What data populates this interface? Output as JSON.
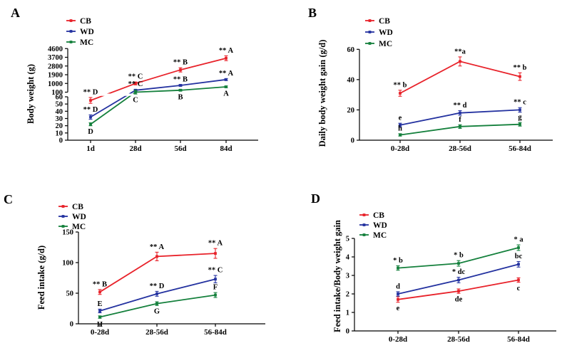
{
  "figure_title": "Growth performance figure (panels A-D)",
  "colors": {
    "CB": "#e8222a",
    "WD": "#2432a0",
    "MC": "#14803c",
    "axis": "#000000"
  },
  "chart_data": [
    {
      "id": "A",
      "type": "line",
      "panel_label": "A",
      "ylabel": "Body weight (g)",
      "xlabel": "",
      "categories": [
        "1d",
        "28d",
        "56d",
        "84d"
      ],
      "legend": [
        "CB",
        "WD",
        "MC"
      ],
      "legend_position": "top-left",
      "grid": false,
      "y_axis": {
        "type": "segmented",
        "lower": {
          "range": [
            0,
            60
          ],
          "ticks": [
            0,
            10,
            20,
            30,
            40,
            50,
            60
          ]
        },
        "upper": {
          "range": [
            100,
            4600
          ],
          "ticks": [
            100,
            1000,
            1900,
            2800,
            3700,
            4600
          ]
        }
      },
      "series": [
        {
          "name": "CB",
          "color": "#e8222a",
          "values": [
            55,
            1000,
            2400,
            3600
          ],
          "errors": [
            4,
            150,
            220,
            250
          ],
          "annotations": [
            {
              "text": "** D",
              "pos": "above"
            },
            {
              "text": "** C",
              "pos": "above"
            },
            {
              "text": "** B",
              "pos": "above"
            },
            {
              "text": "** A",
              "pos": "above"
            }
          ]
        },
        {
          "name": "WD",
          "color": "#2432a0",
          "values": [
            32,
            300,
            800,
            1400
          ],
          "errors": [
            3,
            60,
            80,
            100
          ],
          "annotations": [
            {
              "text": "** D",
              "pos": "above"
            },
            {
              "text": "** C",
              "pos": "above"
            },
            {
              "text": "** B",
              "pos": "above"
            },
            {
              "text": "** A",
              "pos": "above"
            }
          ]
        },
        {
          "name": "MC",
          "color": "#14803c",
          "values": [
            22,
            100,
            300,
            650
          ],
          "errors": [
            2,
            30,
            40,
            50
          ],
          "annotations": [
            {
              "text": "D",
              "pos": "below"
            },
            {
              "text": "C",
              "pos": "below"
            },
            {
              "text": "B",
              "pos": "below"
            },
            {
              "text": "A",
              "pos": "below"
            }
          ]
        }
      ]
    },
    {
      "id": "B",
      "type": "line",
      "panel_label": "B",
      "ylabel": "Daily body weight gain (g/d)",
      "xlabel": "",
      "categories": [
        "0-28d",
        "28-56d",
        "56-84d"
      ],
      "legend": [
        "CB",
        "WD",
        "MC"
      ],
      "legend_position": "top-left",
      "grid": false,
      "y_axis": {
        "type": "linear",
        "range": [
          0,
          60
        ],
        "ticks": [
          0,
          20,
          40,
          60
        ]
      },
      "series": [
        {
          "name": "CB",
          "color": "#e8222a",
          "values": [
            31,
            52,
            42
          ],
          "errors": [
            2,
            3,
            2.5
          ],
          "annotations": [
            {
              "text": "** b",
              "pos": "above"
            },
            {
              "text": "**a",
              "pos": "above"
            },
            {
              "text": "** b",
              "pos": "above"
            }
          ]
        },
        {
          "name": "WD",
          "color": "#2432a0",
          "values": [
            10,
            18,
            20
          ],
          "errors": [
            1.2,
            1.5,
            1.5
          ],
          "annotations": [
            {
              "text": "e",
              "pos": "above"
            },
            {
              "text": "** d",
              "pos": "above"
            },
            {
              "text": "** c",
              "pos": "above"
            }
          ]
        },
        {
          "name": "MC",
          "color": "#14803c",
          "values": [
            3.5,
            9,
            10.5
          ],
          "errors": [
            0.8,
            1.2,
            1.2
          ],
          "annotations": [
            {
              "text": "h",
              "pos": "above"
            },
            {
              "text": "f",
              "pos": "above"
            },
            {
              "text": "g",
              "pos": "above"
            }
          ]
        }
      ]
    },
    {
      "id": "C",
      "type": "line",
      "panel_label": "C",
      "ylabel": "Feed intake (g/d)",
      "xlabel": "",
      "categories": [
        "0-28d",
        "28-56d",
        "56-84d"
      ],
      "legend": [
        "CB",
        "WD",
        "MC"
      ],
      "legend_position": "top-left",
      "grid": false,
      "y_axis": {
        "type": "linear",
        "range": [
          0,
          150
        ],
        "ticks": [
          0,
          50,
          100,
          150
        ]
      },
      "series": [
        {
          "name": "CB",
          "color": "#e8222a",
          "values": [
            52,
            110,
            115
          ],
          "errors": [
            4,
            7,
            8
          ],
          "annotations": [
            {
              "text": "** B",
              "pos": "above"
            },
            {
              "text": "** A",
              "pos": "above"
            },
            {
              "text": "** A",
              "pos": "above"
            }
          ]
        },
        {
          "name": "WD",
          "color": "#2432a0",
          "values": [
            21,
            49,
            73
          ],
          "errors": [
            3,
            4,
            6
          ],
          "annotations": [
            {
              "text": "E",
              "pos": "above"
            },
            {
              "text": "** D",
              "pos": "above"
            },
            {
              "text": "** C",
              "pos": "above"
            }
          ]
        },
        {
          "name": "MC",
          "color": "#14803c",
          "values": [
            11,
            33,
            47
          ],
          "errors": [
            2,
            3,
            4
          ],
          "annotations": [
            {
              "text": "H",
              "pos": "below"
            },
            {
              "text": "G",
              "pos": "below"
            },
            {
              "text": "F",
              "pos": "above"
            }
          ]
        }
      ]
    },
    {
      "id": "D",
      "type": "line",
      "panel_label": "D",
      "ylabel": "Feed intake/Body weight gain",
      "xlabel": "",
      "categories": [
        "0-28d",
        "28-56d",
        "56-84d"
      ],
      "legend": [
        "CB",
        "WD",
        "MC"
      ],
      "legend_position": "top-left",
      "grid": false,
      "y_axis": {
        "type": "linear",
        "range": [
          0,
          5
        ],
        "ticks": [
          0,
          1,
          2,
          3,
          4,
          5
        ]
      },
      "series": [
        {
          "name": "CB",
          "color": "#e8222a",
          "values": [
            1.7,
            2.15,
            2.75
          ],
          "errors": [
            0.15,
            0.12,
            0.12
          ],
          "annotations": [
            {
              "text": "e",
              "pos": "below"
            },
            {
              "text": "de",
              "pos": "below"
            },
            {
              "text": "c",
              "pos": "below"
            }
          ]
        },
        {
          "name": "WD",
          "color": "#2432a0",
          "values": [
            2.0,
            2.75,
            3.6
          ],
          "errors": [
            0.12,
            0.15,
            0.15
          ],
          "annotations": [
            {
              "text": "d",
              "pos": "above"
            },
            {
              "text": "* dc",
              "pos": "above"
            },
            {
              "text": "bc",
              "pos": "above"
            }
          ]
        },
        {
          "name": "MC",
          "color": "#14803c",
          "values": [
            3.4,
            3.65,
            4.5
          ],
          "errors": [
            0.12,
            0.15,
            0.15
          ],
          "annotations": [
            {
              "text": "* b",
              "pos": "above"
            },
            {
              "text": "* b",
              "pos": "above"
            },
            {
              "text": "* a",
              "pos": "above"
            }
          ]
        }
      ]
    }
  ]
}
